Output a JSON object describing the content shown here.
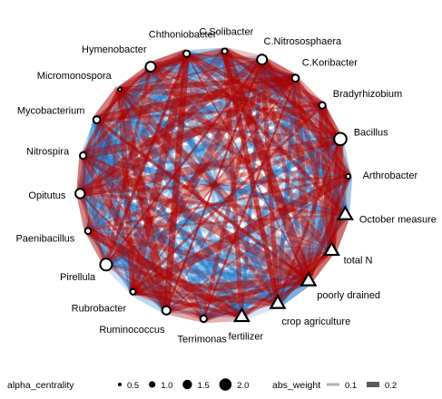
{
  "network": {
    "nodes": [
      {
        "label": "C.Solibacter",
        "shape": "circle",
        "centrality": 0.8
      },
      {
        "label": "C.Nitrososphaera",
        "shape": "circle",
        "centrality": 1.6
      },
      {
        "label": "C.Koribacter",
        "shape": "circle",
        "centrality": 1.1
      },
      {
        "label": "Bradyrhizobium",
        "shape": "circle",
        "centrality": 1.0
      },
      {
        "label": "Bacillus",
        "shape": "circle",
        "centrality": 2.0
      },
      {
        "label": "Arthrobacter",
        "shape": "circle",
        "centrality": 0.7
      },
      {
        "label": "October measure",
        "shape": "triangle",
        "centrality": null
      },
      {
        "label": "total N",
        "shape": "triangle",
        "centrality": null
      },
      {
        "label": "poorly drained",
        "shape": "triangle",
        "centrality": null
      },
      {
        "label": "crop agriculture",
        "shape": "triangle",
        "centrality": null
      },
      {
        "label": "fertilizer",
        "shape": "triangle",
        "centrality": null
      },
      {
        "label": "Terrimonas",
        "shape": "circle",
        "centrality": 1.0
      },
      {
        "label": "Ruminococcus",
        "shape": "circle",
        "centrality": 1.3
      },
      {
        "label": "Rubrobacter",
        "shape": "circle",
        "centrality": 0.8
      },
      {
        "label": "Pirellula",
        "shape": "circle",
        "centrality": 1.9
      },
      {
        "label": "Paenibacillus",
        "shape": "circle",
        "centrality": 0.9
      },
      {
        "label": "Opitutus",
        "shape": "circle",
        "centrality": 1.5
      },
      {
        "label": "Nitrospira",
        "shape": "circle",
        "centrality": 1.0
      },
      {
        "label": "Mycobacterium",
        "shape": "circle",
        "centrality": 1.1
      },
      {
        "label": "Micromonospora",
        "shape": "circle",
        "centrality": 0.5
      },
      {
        "label": "Hymenobacter",
        "shape": "circle",
        "centrality": 1.6
      },
      {
        "label": "Chthoniobacter",
        "shape": "circle",
        "centrality": 1.0
      }
    ],
    "edge_colors": {
      "positive": "#a80000",
      "negative": "#1f78c8"
    }
  },
  "legend": {
    "centrality_title": "alpha_centrality",
    "centrality_items": [
      {
        "label": "0.5",
        "value": 0.5
      },
      {
        "label": "1.0",
        "value": 1.0
      },
      {
        "label": "1.5",
        "value": 1.5
      },
      {
        "label": "2.0",
        "value": 2.0
      }
    ],
    "weight_title": "abs_weight",
    "weight_items": [
      {
        "label": "0.1",
        "color": "#b0b0b0"
      },
      {
        "label": "0.2",
        "color": "#5a5a5a"
      }
    ]
  }
}
